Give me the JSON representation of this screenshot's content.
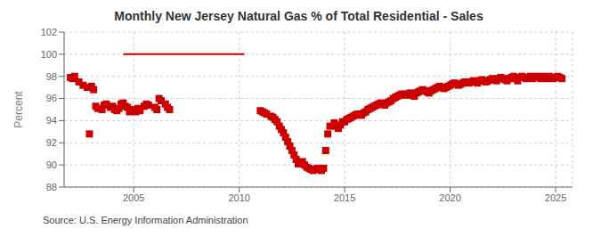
{
  "chart_data": {
    "type": "scatter",
    "title": "Monthly New Jersey Natural Gas % of Total Residential - Sales",
    "ylabel": "Percent",
    "annotation": "Source: U.S. Energy Information Administration",
    "xlim": [
      2001.7,
      2025.8
    ],
    "xticks": [
      2005,
      2010,
      2015,
      2020,
      2025
    ],
    "ylim": [
      88,
      102
    ],
    "yticks": [
      88,
      90,
      92,
      94,
      96,
      98,
      100,
      102
    ],
    "grid": true,
    "series": [
      {
        "type": "line",
        "color": "#cc0000",
        "line_style": "solid",
        "x": [
          2004.5,
          2010.25
        ],
        "values": [
          100.0,
          100.0
        ]
      },
      {
        "type": "scatter",
        "color": "#cc0000",
        "marker": "square",
        "x": [
          2002.0,
          2002.1,
          2002.2,
          2002.4,
          2002.6,
          2002.8,
          2002.9,
          2003.0,
          2003.1,
          2003.2,
          2003.3,
          2003.5,
          2003.6,
          2003.7,
          2003.9,
          2004.0,
          2004.1,
          2004.2,
          2004.3,
          2004.4,
          2004.5,
          2004.6,
          2004.7,
          2004.8,
          2005.0,
          2005.1,
          2005.2,
          2005.3,
          2005.5,
          2005.6,
          2005.7,
          2006.0,
          2006.1,
          2006.2,
          2006.3,
          2006.5,
          2006.6,
          2006.7,
          2011.0,
          2011.1,
          2011.2,
          2011.3,
          2011.5,
          2011.6,
          2011.7,
          2011.8,
          2011.9,
          2012.0,
          2012.1,
          2012.2,
          2012.3,
          2012.4,
          2012.5,
          2012.6,
          2012.7,
          2012.8,
          2013.0,
          2013.1,
          2013.2,
          2013.3,
          2013.4,
          2013.5,
          2013.6,
          2013.7,
          2013.8,
          2013.9,
          2014.0,
          2014.1,
          2014.2,
          2014.3,
          2014.5,
          2014.6,
          2014.7,
          2014.8,
          2014.9,
          2015.0,
          2015.1,
          2015.2,
          2015.3,
          2015.4,
          2015.5,
          2015.6,
          2015.7,
          2015.8,
          2015.9,
          2016.0,
          2016.1,
          2016.2,
          2016.3,
          2016.4,
          2016.5,
          2016.6,
          2016.7,
          2016.8,
          2016.9,
          2017.0,
          2017.1,
          2017.2,
          2017.3,
          2017.4,
          2017.5,
          2017.6,
          2017.7,
          2017.8,
          2017.9,
          2018.0,
          2018.1,
          2018.2,
          2018.3,
          2018.4,
          2018.5,
          2018.6,
          2018.7,
          2018.8,
          2018.9,
          2019.0,
          2019.1,
          2019.2,
          2019.3,
          2019.4,
          2019.5,
          2019.6,
          2019.7,
          2019.8,
          2019.9,
          2020.0,
          2020.1,
          2020.2,
          2020.3,
          2020.4,
          2020.5,
          2020.6,
          2020.7,
          2020.8,
          2020.9,
          2021.0,
          2021.1,
          2021.2,
          2021.3,
          2021.4,
          2021.5,
          2021.6,
          2021.7,
          2021.8,
          2021.9,
          2022.0,
          2022.1,
          2022.2,
          2022.3,
          2022.4,
          2022.5,
          2022.6,
          2022.7,
          2022.8,
          2022.9,
          2023.0,
          2023.1,
          2023.2,
          2023.3,
          2023.4,
          2023.5,
          2023.6,
          2023.7,
          2023.8,
          2023.9,
          2024.0,
          2024.1,
          2024.2,
          2024.3,
          2024.4,
          2024.5,
          2024.6,
          2024.7,
          2024.8,
          2024.9,
          2025.0,
          2025.1,
          2025.2,
          2025.3
        ],
        "values": [
          97.9,
          97.8,
          98.0,
          97.5,
          97.2,
          97.0,
          92.8,
          97.1,
          96.8,
          95.3,
          95.1,
          95.0,
          95.4,
          95.5,
          95.2,
          95.3,
          95.0,
          94.9,
          95.1,
          95.5,
          95.6,
          95.3,
          95.2,
          94.8,
          95.0,
          94.8,
          95.1,
          94.9,
          95.3,
          95.5,
          95.4,
          95.2,
          95.0,
          96.0,
          95.8,
          95.5,
          95.2,
          95.0,
          94.9,
          94.8,
          94.7,
          94.6,
          94.4,
          94.3,
          94.1,
          93.9,
          93.5,
          93.2,
          92.9,
          92.5,
          92.1,
          91.7,
          91.3,
          90.9,
          90.5,
          90.1,
          90.3,
          90.0,
          89.8,
          89.7,
          89.6,
          89.5,
          89.6,
          89.7,
          89.6,
          89.5,
          89.7,
          91.3,
          92.8,
          93.5,
          93.8,
          93.5,
          93.3,
          93.6,
          93.9,
          93.9,
          94.1,
          94.2,
          94.3,
          94.4,
          94.5,
          94.6,
          94.5,
          94.5,
          94.7,
          94.8,
          95.0,
          95.1,
          95.2,
          95.3,
          95.4,
          95.5,
          95.6,
          95.5,
          95.4,
          95.6,
          95.7,
          95.8,
          96.0,
          96.1,
          96.2,
          96.3,
          96.4,
          96.4,
          96.3,
          96.4,
          96.5,
          96.3,
          96.2,
          96.5,
          96.6,
          96.7,
          96.8,
          96.7,
          96.6,
          96.5,
          96.7,
          96.8,
          96.9,
          97.0,
          97.1,
          97.0,
          96.9,
          97.0,
          97.1,
          97.2,
          97.3,
          97.4,
          97.3,
          97.2,
          97.3,
          97.4,
          97.5,
          97.5,
          97.4,
          97.5,
          97.6,
          97.5,
          97.4,
          97.6,
          97.7,
          97.6,
          97.5,
          97.6,
          97.7,
          97.8,
          97.7,
          97.6,
          97.8,
          97.9,
          97.8,
          97.7,
          97.6,
          97.8,
          97.9,
          98.0,
          97.8,
          97.6,
          97.9,
          98.0,
          97.9,
          97.8,
          97.9,
          98.0,
          97.8,
          97.9,
          98.0,
          97.9,
          97.8,
          98.0,
          97.9,
          97.8,
          98.0,
          97.9,
          97.8,
          97.9,
          98.0,
          97.9,
          97.8
        ]
      }
    ]
  }
}
